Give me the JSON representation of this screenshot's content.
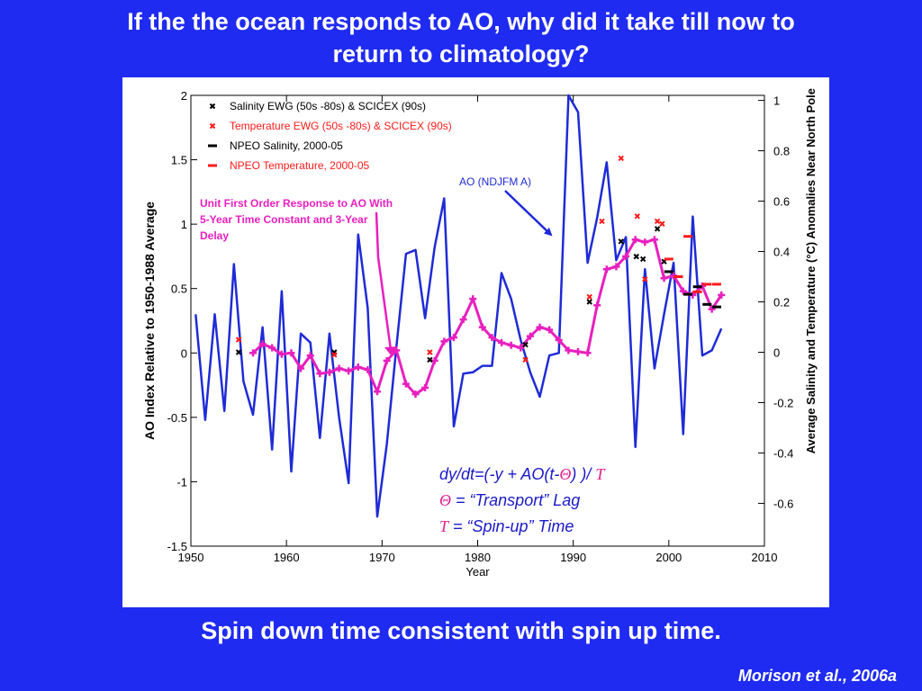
{
  "slide": {
    "title_line1": "If the the ocean responds to AO, why did it take till now to",
    "title_line2": "return to climatology?",
    "footer": "Spin down time consistent with spin up time.",
    "citation": "Morison et al., 2006a"
  },
  "colors": {
    "background": "#1f2bf0",
    "ao_line": "#1f2bd6",
    "response_line": "#e81fbe",
    "salinity": "#000000",
    "temperature": "#ff1a1a"
  },
  "chart_data": {
    "type": "line",
    "xlabel": "Year",
    "ylabel": "AO Index Relative to 1950-1988 Average",
    "y2label": "Average Salinity and Temperature (°C) Anomalies  Near North Pole",
    "xlim": [
      1950,
      2010
    ],
    "ylim": [
      -1.5,
      2
    ],
    "y2lim": [
      -0.77,
      1.02
    ],
    "x_ticks": [
      "1950",
      "1960",
      "1970",
      "1980",
      "1990",
      "2000",
      "2010"
    ],
    "y_ticks": [
      "2",
      "1.5",
      "1",
      "0.5",
      "0",
      "-0.5",
      "-1",
      "-1.5"
    ],
    "y2_ticks": [
      "1",
      "0.8",
      "0.6",
      "0.4",
      "0.2",
      "0",
      "-0.2",
      "-0.4",
      "-0.6"
    ],
    "legend": {
      "placement": "top-left",
      "entries": [
        {
          "label": "Salinity EWG (50s -80s) & SCICEX (90s)",
          "color": "#000000",
          "symbol": "x"
        },
        {
          "label": "Temperature EWG (50s -80s) & SCICEX (90s)",
          "color": "#ff1a1a",
          "symbol": "x"
        },
        {
          "label": "NPEO Salinity, 2000-05",
          "color": "#000000",
          "symbol": "dash"
        },
        {
          "label": "NPEO Temperature, 2000-05",
          "color": "#ff1a1a",
          "symbol": "dash"
        }
      ]
    },
    "annotations": {
      "ao_label": "AO (NDJFM A)",
      "response_label_lines": [
        "Unit First Order Response to AO With",
        "5-Year Time Constant and 3-Year",
        "Delay"
      ],
      "equation_lines": [
        {
          "parts": [
            {
              "t": "dy/dt=(-y + AO(t-",
              "s": "normal"
            },
            {
              "t": "Θ",
              "s": "symbol"
            },
            {
              "t": ") )/ ",
              "s": "normal"
            },
            {
              "t": "T",
              "s": "symbol"
            }
          ]
        },
        {
          "parts": [
            {
              "t": "Θ",
              "s": "symbol"
            },
            {
              "t": " = “Transport” Lag",
              "s": "normal"
            }
          ]
        },
        {
          "parts": [
            {
              "t": "T",
              "s": "symbol"
            },
            {
              "t": " = “Spin-up” Time",
              "s": "normal"
            }
          ]
        }
      ]
    },
    "series": [
      {
        "name": "AO (NDJFM A)",
        "axis": "left",
        "style": "line",
        "x": [
          1950.5,
          1951.5,
          1952.5,
          1953.5,
          1954.5,
          1955.5,
          1956.5,
          1957.5,
          1958.5,
          1959.5,
          1960.5,
          1961.5,
          1962.5,
          1963.5,
          1964.5,
          1965.5,
          1966.5,
          1967.5,
          1968.5,
          1969.5,
          1970.5,
          1971.5,
          1972.5,
          1973.5,
          1974.5,
          1975.5,
          1976.5,
          1977.5,
          1978.5,
          1979.5,
          1980.5,
          1981.5,
          1982.5,
          1983.5,
          1984.5,
          1985.5,
          1986.5,
          1987.5,
          1988.5,
          1989.5,
          1990.5,
          1991.5,
          1992.5,
          1993.5,
          1994.5,
          1995.5,
          1996.5,
          1997.5,
          1998.5,
          1999.5,
          2000.5,
          2001.5,
          2002.5,
          2003.5,
          2004.5,
          2005.5
        ],
        "y": [
          0.3,
          -0.52,
          0.3,
          -0.45,
          0.69,
          -0.22,
          -0.48,
          0.2,
          -0.75,
          0.48,
          -0.92,
          0.15,
          0.08,
          -0.66,
          0.15,
          -0.5,
          -1.01,
          0.92,
          0.35,
          -1.27,
          -0.71,
          0.05,
          0.77,
          0.8,
          0.27,
          0.82,
          1.2,
          -0.57,
          -0.16,
          -0.15,
          -0.1,
          -0.1,
          0.62,
          0.42,
          0.1,
          -0.15,
          -0.34,
          -0.02,
          0.0,
          2.0,
          1.87,
          0.7,
          1.05,
          1.48,
          0.72,
          0.9,
          -0.73,
          0.65,
          -0.12,
          0.3,
          0.7,
          -0.63,
          1.06,
          -0.02,
          0.02,
          0.19
        ]
      },
      {
        "name": "Unit First Order Response to AO With 5-Year Time Constant and 3-Year Delay",
        "axis": "left",
        "style": "line-marker",
        "x": [
          1956.5,
          1957.5,
          1958.5,
          1959.5,
          1960.5,
          1961.5,
          1962.5,
          1963.5,
          1964.5,
          1965.5,
          1966.5,
          1967.5,
          1968.5,
          1969.5,
          1970.5,
          1971.5,
          1972.5,
          1973.5,
          1974.5,
          1975.5,
          1976.5,
          1977.5,
          1978.5,
          1979.5,
          1980.5,
          1981.5,
          1982.5,
          1983.5,
          1984.5,
          1985.5,
          1986.5,
          1987.5,
          1988.5,
          1989.5,
          1990.5,
          1991.5,
          1992.5,
          1993.5,
          1994.5,
          1995.5,
          1996.5,
          1997.5,
          1998.5,
          1999.5,
          2000.5,
          2001.5,
          2002.5,
          2003.5,
          2004.5,
          2005.5
        ],
        "y": [
          0.0,
          0.07,
          0.04,
          -0.01,
          0.0,
          -0.12,
          -0.02,
          -0.16,
          -0.15,
          -0.12,
          -0.14,
          -0.11,
          -0.13,
          -0.3,
          -0.06,
          0.02,
          -0.24,
          -0.32,
          -0.27,
          -0.06,
          0.09,
          0.12,
          0.26,
          0.42,
          0.2,
          0.12,
          0.08,
          0.06,
          0.04,
          0.13,
          0.2,
          0.18,
          0.1,
          0.02,
          0.01,
          0.0,
          0.37,
          0.65,
          0.67,
          0.75,
          0.88,
          0.86,
          0.88,
          0.58,
          0.6,
          0.48,
          0.45,
          0.52,
          0.34,
          0.45
        ]
      },
      {
        "name": "Salinity EWG (50s -80s) & SCICEX (90s)",
        "axis": "right",
        "style": "x-marker",
        "x": [
          1955,
          1965,
          1975,
          1985,
          1991.7,
          1995,
          1996.6,
          1997.3,
          1998.8,
          1999.5
        ],
        "y": [
          0.0,
          0.0,
          -0.03,
          0.03,
          0.2,
          0.44,
          0.38,
          0.37,
          0.49,
          0.36
        ]
      },
      {
        "name": "Temperature EWG (50s -80s) & SCICEX (90s)",
        "axis": "right",
        "style": "x-marker",
        "x": [
          1955,
          1965,
          1975,
          1985,
          1991.7,
          1993,
          1995,
          1996.7,
          1997.5,
          1998.8,
          1999.3
        ],
        "y": [
          0.05,
          -0.01,
          0.0,
          -0.03,
          0.22,
          0.52,
          0.77,
          0.54,
          0.29,
          0.52,
          0.51
        ]
      },
      {
        "name": "NPEO Salinity, 2000-05",
        "axis": "right",
        "style": "dash-marker",
        "x": [
          2000,
          2001,
          2002,
          2003,
          2004,
          2005
        ],
        "y": [
          0.32,
          0.3,
          0.23,
          0.26,
          0.19,
          0.18
        ]
      },
      {
        "name": "NPEO Temperature, 2000-05",
        "axis": "right",
        "style": "dash-marker",
        "x": [
          2000,
          2001,
          2002,
          2003,
          2004,
          2005
        ],
        "y": [
          0.37,
          0.3,
          0.46,
          0.24,
          0.27,
          0.27
        ]
      }
    ]
  }
}
